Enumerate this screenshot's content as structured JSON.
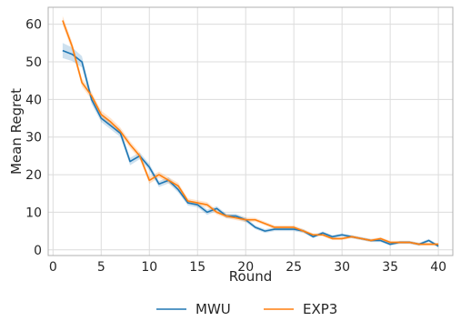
{
  "chart_data": {
    "type": "line",
    "title": "",
    "xlabel": "Round",
    "ylabel": "Mean Regret",
    "xlim": [
      -0.5,
      41.5
    ],
    "ylim": [
      -1.5,
      64.5
    ],
    "xticks": [
      0,
      5,
      10,
      15,
      20,
      25,
      30,
      35,
      40
    ],
    "yticks": [
      0,
      10,
      20,
      30,
      40,
      50,
      60
    ],
    "grid": true,
    "legend_position": "bottom-center",
    "x": [
      1,
      2,
      3,
      4,
      5,
      6,
      7,
      8,
      9,
      10,
      11,
      12,
      13,
      14,
      15,
      16,
      17,
      18,
      19,
      20,
      21,
      22,
      23,
      24,
      25,
      26,
      27,
      28,
      29,
      30,
      31,
      32,
      33,
      34,
      35,
      36,
      37,
      38,
      39,
      40
    ],
    "series": [
      {
        "name": "MWU",
        "color": "#1f77b4",
        "values": [
          53,
          52,
          50,
          40,
          35,
          33,
          31,
          23.5,
          25,
          22,
          17.5,
          18.5,
          16,
          12.5,
          12,
          10,
          11,
          9,
          9,
          8,
          6,
          5,
          5.5,
          5.5,
          5.5,
          5,
          3.5,
          4.5,
          3.5,
          4,
          3.5,
          3,
          2.5,
          2.5,
          1.5,
          2,
          2,
          1.5,
          2.5,
          1
        ],
        "band": [
          2.0,
          1.8,
          1.5,
          1.2,
          1.0,
          1.0,
          1.0,
          1.0,
          0.9,
          0.9,
          0.8,
          0.8,
          0.8,
          0.7,
          0.7,
          0.7,
          0.6,
          0.6,
          0.6,
          0.6,
          0.5,
          0.5,
          0.5,
          0.5,
          0.5,
          0.5,
          0.4,
          0.4,
          0.4,
          0.4,
          0.4,
          0.4,
          0.4,
          0.4,
          0.4,
          0.4,
          0.4,
          0.4,
          0.4,
          0.4
        ]
      },
      {
        "name": "EXP3",
        "color": "#ff7f0e",
        "values": [
          61,
          54,
          44.5,
          41,
          36,
          34,
          31.5,
          28,
          25,
          18.5,
          20,
          18.5,
          17,
          13,
          12.5,
          12,
          10,
          9,
          8.5,
          8,
          8,
          7,
          6,
          6,
          6,
          5,
          4,
          4,
          3,
          3,
          3.5,
          3,
          2.5,
          3,
          2,
          2,
          2,
          1.5,
          1.5,
          1.5
        ],
        "band": [
          1.2,
          1.2,
          1.1,
          1.0,
          1.0,
          1.0,
          1.0,
          0.9,
          0.9,
          0.9,
          0.8,
          0.8,
          0.8,
          0.7,
          0.7,
          0.7,
          0.6,
          0.6,
          0.6,
          0.6,
          0.5,
          0.5,
          0.5,
          0.5,
          0.5,
          0.5,
          0.4,
          0.4,
          0.4,
          0.4,
          0.4,
          0.4,
          0.4,
          0.4,
          0.4,
          0.4,
          0.4,
          0.4,
          0.4,
          0.4
        ]
      }
    ]
  }
}
